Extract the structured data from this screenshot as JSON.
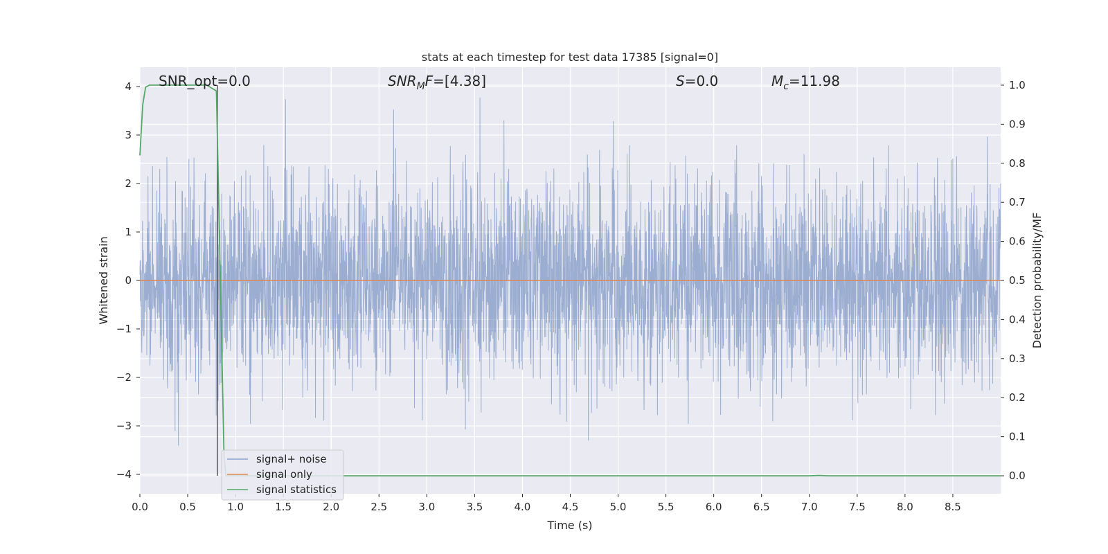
{
  "chart_data": {
    "type": "line",
    "title": "stats at each timestep for test data 17385 [signal=0]",
    "xlabel": "Time (s)",
    "ylabel": "Whitened strain",
    "y2label": "Detection probability/MF",
    "xlim": [
      0.0,
      9.0
    ],
    "ylim": [
      -4.4,
      4.4
    ],
    "y2lim": [
      -0.046,
      1.046
    ],
    "xticks": [
      "0.0",
      "0.5",
      "1.0",
      "1.5",
      "2.0",
      "2.5",
      "3.0",
      "3.5",
      "4.0",
      "4.5",
      "5.0",
      "5.5",
      "6.0",
      "6.5",
      "7.0",
      "7.5",
      "8.0",
      "8.5"
    ],
    "yticks": [
      "4",
      "3",
      "2",
      "1",
      "0",
      "−1",
      "−2",
      "−3",
      "−4"
    ],
    "y2ticks": [
      "1.0",
      "0.9",
      "0.8",
      "0.7",
      "0.6",
      "0.5",
      "0.4",
      "0.3",
      "0.2",
      "0.1",
      "0.0"
    ],
    "grid": true,
    "legend_position": "lower-left",
    "annotations": {
      "snr_opt": "SNR_opt=0.0",
      "snr_mf_base": "SNR",
      "snr_mf_sub": "M",
      "snr_mf_rest": "F=[4.38]",
      "s_base": "S",
      "s_rest": "=0.0",
      "mc_base": "M",
      "mc_sub": "c",
      "mc_rest": "=11.98"
    },
    "vertical_marker_x": 0.81,
    "series": [
      {
        "name": "signal+ noise",
        "color": "#4c72b0",
        "description_kind": "noise",
        "amplitude_envelope": [
          -3.7,
          4.0
        ]
      },
      {
        "name": "signal only",
        "color": "#dd8452",
        "values_x": [
          0.0,
          9.0
        ],
        "values_y": [
          0.0,
          0.0
        ]
      },
      {
        "name": "signal statistics",
        "color": "#55a868",
        "axis": "right",
        "x": [
          0.0,
          0.03,
          0.06,
          0.1,
          0.15,
          0.3,
          0.5,
          0.7,
          0.8,
          0.85,
          0.88,
          0.9,
          1.0,
          2.0,
          3.0,
          4.0,
          5.0,
          6.0,
          7.0,
          7.1,
          7.2,
          8.0,
          9.0
        ],
        "y": [
          0.82,
          0.95,
          0.995,
          1.0,
          1.0,
          1.0,
          1.0,
          1.0,
          0.985,
          0.4,
          0.05,
          0.0,
          0.0,
          0.0,
          0.0,
          0.0,
          0.0,
          0.0,
          0.0,
          0.001,
          0.0,
          0.0,
          0.0
        ]
      }
    ]
  },
  "colors": {
    "plot_bg": "#eaeaf2",
    "grid": "#ffffff",
    "noise": "#4c72b0",
    "signal": "#dd8452",
    "stats": "#55a868",
    "marker": "#555555"
  }
}
